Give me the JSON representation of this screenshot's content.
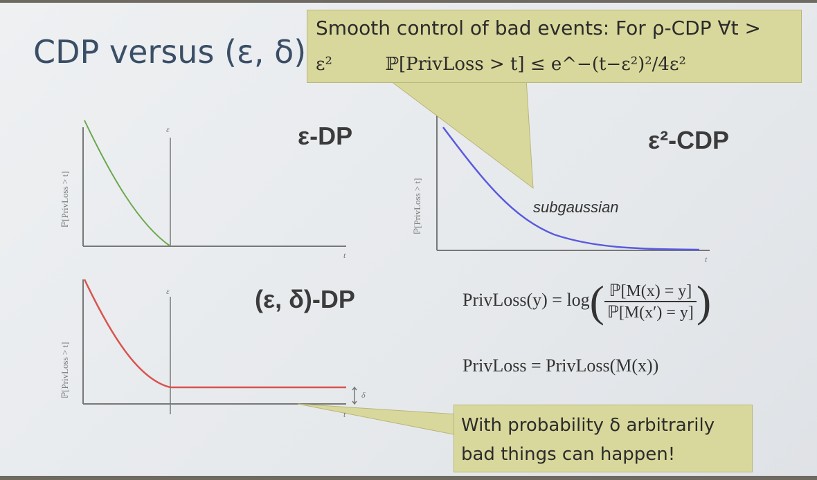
{
  "title": "CDP versus (ε, δ)-",
  "callout_top": {
    "line1": "Smooth control of bad events: For ρ-CDP ∀t >",
    "line2_left": "ε²",
    "line2_formula": "ℙ[PrivLoss > t] ≤ e^−(t−ε²)²/4ε²"
  },
  "plots": {
    "eps_dp": {
      "title": "ε-DP",
      "ylabel": "ℙ[PrivLoss > t]",
      "tick_eps": "ε",
      "tick_t": "t"
    },
    "eps2_cdp": {
      "title": "ε²-CDP",
      "ylabel": "ℙ[PrivLoss > t]",
      "tick_t": "t",
      "curve_label": "subgaussian"
    },
    "eps_delta_dp": {
      "title": "(ε, δ)-DP",
      "ylabel": "ℙ[PrivLoss > t]",
      "tick_eps": "ε",
      "tick_t": "t",
      "tick_delta": "δ"
    }
  },
  "formulas": {
    "privloss_lhs": "PrivLoss(y) = log",
    "privloss_num": "ℙ[M(x) = y]",
    "privloss_den": "ℙ[M(x′) = y]",
    "privloss_def": "PrivLoss = PrivLoss(M(x))"
  },
  "callout_bottom": {
    "line1": "With probability δ arbitrarily",
    "line2": "bad things can happen!"
  },
  "colors": {
    "title": "#3a4e66",
    "callout": "#d9d89c",
    "green_curve": "#6aa84f",
    "blue_curve": "#5a5ae0",
    "red_curve": "#d9534f"
  }
}
